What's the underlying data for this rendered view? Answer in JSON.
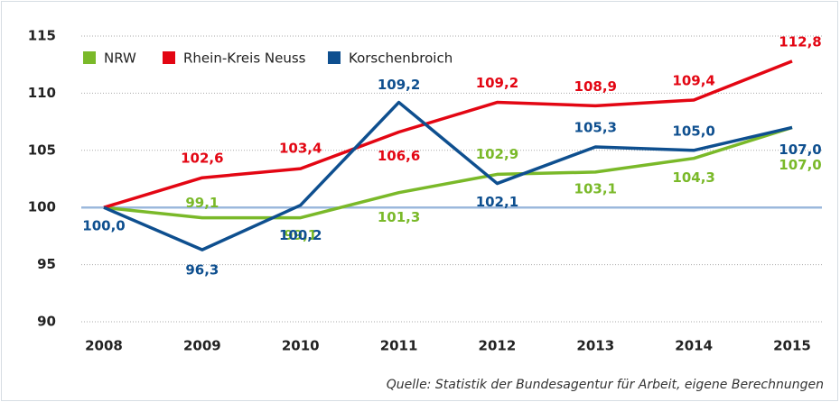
{
  "chart_data": {
    "type": "line",
    "categories": [
      "2008",
      "2009",
      "2010",
      "2011",
      "2012",
      "2013",
      "2014",
      "2015"
    ],
    "series": [
      {
        "name": "NRW",
        "color": "#7ab929",
        "values": [
          100,
          99.1,
          99.1,
          101.3,
          102.9,
          103.1,
          104.3,
          107.0
        ],
        "value_labels": [
          null,
          "99,1",
          "99,1",
          "101,3",
          "102,9",
          "103,1",
          "104,3",
          "107,0"
        ]
      },
      {
        "name": "Rhein-Kreis Neuss",
        "color": "#e30613",
        "values": [
          100,
          102.6,
          103.4,
          106.6,
          109.2,
          108.9,
          109.4,
          112.8
        ],
        "value_labels": [
          null,
          "102,6",
          "103,4",
          "106,6",
          "109,2",
          "108,9",
          "109,4",
          "112,8"
        ]
      },
      {
        "name": "Korschenbroich",
        "color": "#0e4f8f",
        "values": [
          100.0,
          96.3,
          100.2,
          109.2,
          102.1,
          105.3,
          105.0,
          107.0
        ],
        "value_labels": [
          "100,0",
          "96,3",
          "100,2",
          "109,2",
          "102,1",
          "105,3",
          "105,0",
          "107,0"
        ]
      }
    ],
    "ylim": [
      90,
      115
    ],
    "yticks": [
      90,
      95,
      100,
      105,
      110,
      115
    ],
    "grid": true,
    "reference_line": 100,
    "reference_color": "#9bb8dc",
    "source": "Quelle: Statistik der Bundesagentur für Arbeit, eigene Berechnungen"
  }
}
